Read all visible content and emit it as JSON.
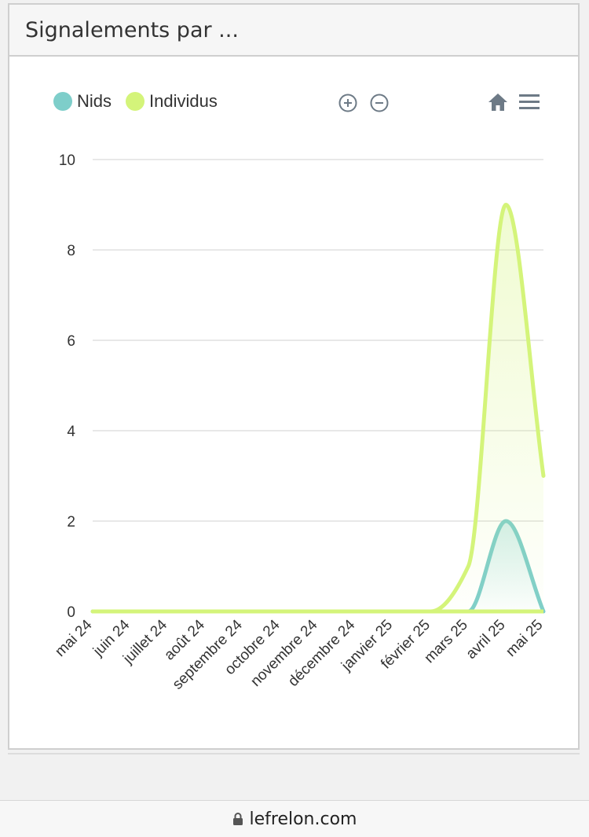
{
  "card": {
    "title": "Signalements par ..."
  },
  "legend": [
    {
      "label": "Nids",
      "color": "#7ececa"
    },
    {
      "label": "Individus",
      "color": "#d4f47a"
    }
  ],
  "toolbar": {
    "zoom_in": "zoom-in-icon",
    "zoom_out": "zoom-out-icon",
    "home": "home-icon",
    "menu": "menu-icon"
  },
  "footer": {
    "url": "lefrelon.com"
  },
  "chart_data": {
    "type": "area",
    "categories": [
      "mai 24",
      "juin 24",
      "juillet 24",
      "août 24",
      "septembre 24",
      "octobre 24",
      "novembre 24",
      "décembre 24",
      "janvier 25",
      "février 25",
      "mars 25",
      "avril 25",
      "mai 25"
    ],
    "series": [
      {
        "name": "Nids",
        "color": "#7ececa",
        "values": [
          0,
          0,
          0,
          0,
          0,
          0,
          0,
          0,
          0,
          0,
          0,
          2,
          0
        ]
      },
      {
        "name": "Individus",
        "color": "#d4f47a",
        "values": [
          0,
          0,
          0,
          0,
          0,
          0,
          0,
          0,
          0,
          0,
          1,
          9,
          3
        ]
      }
    ],
    "ylim": [
      0,
      10
    ],
    "yticks": [
      0,
      2,
      4,
      6,
      8,
      10
    ],
    "grid": true,
    "legend_position": "top-left"
  }
}
